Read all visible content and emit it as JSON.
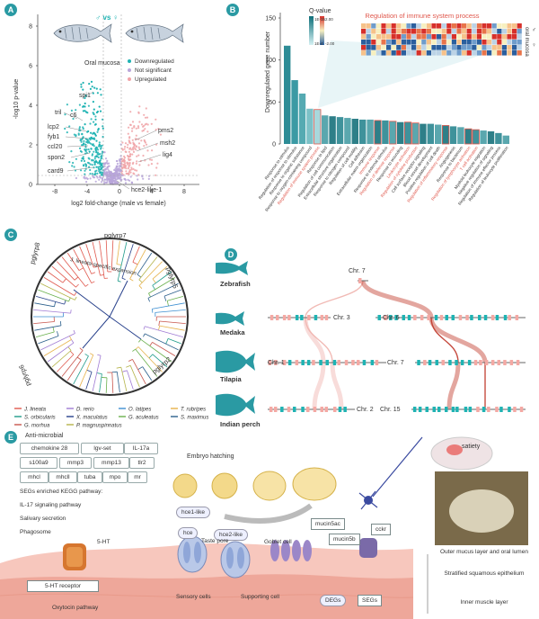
{
  "panels": {
    "a": "A",
    "b": "B",
    "c": "C",
    "d": "D",
    "e": "E"
  },
  "volcano": {
    "sex_symbols": "♂ vs ♀",
    "tissue": "Oral mucosa",
    "legend": [
      "Downregulated",
      "Not significant",
      "Upregulated"
    ],
    "colors": {
      "down": "#1fb3b3",
      "ns": "#b9a6d9",
      "up": "#f0a3a7"
    },
    "ylabel": "-log10 p-value",
    "xlabel": "log2 fold-change (male vs female)",
    "yticks": [
      "0",
      "2",
      "4",
      "6",
      "8"
    ],
    "xticks": [
      "-8",
      "-4",
      "0",
      "4",
      "8"
    ],
    "genes_down": [
      "spi1",
      "tril",
      "c6",
      "lcp2",
      "fyb1",
      "ccl20",
      "spon2",
      "card9"
    ],
    "genes_up": [
      "pms2",
      "msh2",
      "lig4",
      "hce2-like-1"
    ]
  },
  "enrich": {
    "ylabel": "Downregulated gene number",
    "yticks": [
      "0",
      "50",
      "100",
      "150"
    ],
    "heatmap_title": "Regulation of immune system process",
    "legend_title": "Q-value",
    "legend_values": [
      "1E-15",
      "1E-4",
      "2.00",
      "-2.00"
    ],
    "sex_labels": [
      "♂",
      "♀"
    ],
    "heatmap_side": "oral mucosa",
    "values": [
      117,
      76,
      60,
      42,
      41,
      34,
      33,
      32,
      31,
      30,
      29,
      29,
      28,
      28,
      27,
      26,
      26,
      25,
      24,
      24,
      23,
      22,
      21,
      20,
      18,
      17,
      16,
      15,
      13,
      10
    ],
    "terms": [
      {
        "t": "Response to stimulus",
        "red": false
      },
      {
        "t": "Regulation of response to stimulus",
        "red": false
      },
      {
        "t": "Response to organic substance",
        "red": false
      },
      {
        "t": "Response to oxygen-containing compound",
        "red": false
      },
      {
        "t": "Regulation of immune system process",
        "red": true
      },
      {
        "t": "Response to lipid",
        "red": false
      },
      {
        "t": "Regulation of cell communication",
        "red": false
      },
      {
        "t": "Extracellular structure organization",
        "red": false
      },
      {
        "t": "Response to nitrogen compound",
        "red": false
      },
      {
        "t": "Regulation of cell motility",
        "red": false
      },
      {
        "t": "Cell adhesion",
        "red": false
      },
      {
        "t": "Extracellular matrix organization",
        "red": false
      },
      {
        "t": "Immune response",
        "red": true
      },
      {
        "t": "Response to external stimulus",
        "red": false
      },
      {
        "t": "Regulation of defense response",
        "red": true
      },
      {
        "t": "Response to wounding",
        "red": false
      },
      {
        "t": "Leukocyte activation",
        "red": true
      },
      {
        "t": "Regulation of cytokine production",
        "red": true
      },
      {
        "t": "Cell surface receptor signaling",
        "red": false
      },
      {
        "t": "Blood vessel development",
        "red": false
      },
      {
        "t": "Positive regulation of cell death",
        "red": false
      },
      {
        "t": "Regulation of inflammatory response",
        "red": true
      },
      {
        "t": "Angiogenesis",
        "red": false
      },
      {
        "t": "Response to bacterium",
        "red": false
      },
      {
        "t": "Regulation of lymphocyte activation",
        "red": true
      },
      {
        "t": "T cell activation",
        "red": true
      },
      {
        "t": "Myeloid leukocyte migration",
        "red": false
      },
      {
        "t": "Negative regulation of signaling",
        "red": false
      },
      {
        "t": "Regulation of immune effector process",
        "red": false
      },
      {
        "t": "Regulation of leukocyte proliferation",
        "red": false
      }
    ]
  },
  "tree": {
    "genes": [
      "pglyrp7",
      "pglyrp5",
      "pglyrp2",
      "pglyrp6",
      "pglyrp8"
    ],
    "expansion_label": "J. lineata-specific expansion",
    "legend": [
      {
        "name": "J. lineata",
        "color": "#e0584d"
      },
      {
        "name": "D. rerio",
        "color": "#a07bd4"
      },
      {
        "name": "O. latipes",
        "color": "#3d8fd1"
      },
      {
        "name": "T. rubripes",
        "color": "#e6b24a"
      },
      {
        "name": "S. orbicularis",
        "color": "#1e9b8a"
      },
      {
        "name": "X. maculatus",
        "color": "#27408b"
      },
      {
        "name": "G. aculeatus",
        "color": "#6ab04c"
      },
      {
        "name": "S. maximus",
        "color": "#2b5f8c"
      },
      {
        "name": "G. morhua",
        "color": "#c8554c"
      },
      {
        "name": "P. magnuspinnatus",
        "color": "#b5b44a"
      }
    ]
  },
  "synteny": {
    "species": [
      "Zebrafish",
      "Medaka",
      "Tilapia",
      "Indian perch"
    ],
    "chromosomes": [
      "Chr. 7",
      "Chr. 3",
      "Chr. 6",
      "Chr. 1",
      "Chr. 7",
      "Chr. 2",
      "Chr. 15"
    ]
  },
  "model": {
    "antimicrobial_title": "Anti-microbial",
    "genes_row1": [
      "chemokine 28",
      "lgv-set",
      "IL-17a"
    ],
    "genes_row2": [
      "s100a9",
      "mmp3",
      "mmp13",
      "tlr2"
    ],
    "genes_row3": [
      "mhcl",
      "mhcll",
      "tuba",
      "mpo",
      "mr"
    ],
    "kegg_title": "SEGs enriched KEGG pathway:",
    "kegg": [
      "IL-17 signaling pathway",
      "Salivary secretion",
      "Phagosome"
    ],
    "hatching": "Embryo hatching",
    "hce": [
      "hce1-like",
      "hce",
      "hce2-like"
    ],
    "satiety": "satiety",
    "mucins": [
      "mucin5ac",
      "mucin5b"
    ],
    "cckr": "cckr",
    "cells": [
      "5-HT",
      "Taste pore",
      "Goblet cell",
      "Sensory cells",
      "Supporting cell"
    ],
    "receptor": "5-HT receptor",
    "oxytocin": "Oxytocin pathway",
    "degs": "DEGs",
    "segs": "SEGs",
    "layers": [
      "Outer mucus layer and oral lumen",
      "Stratified squamous epithelium",
      "Inner muscle layer"
    ]
  }
}
